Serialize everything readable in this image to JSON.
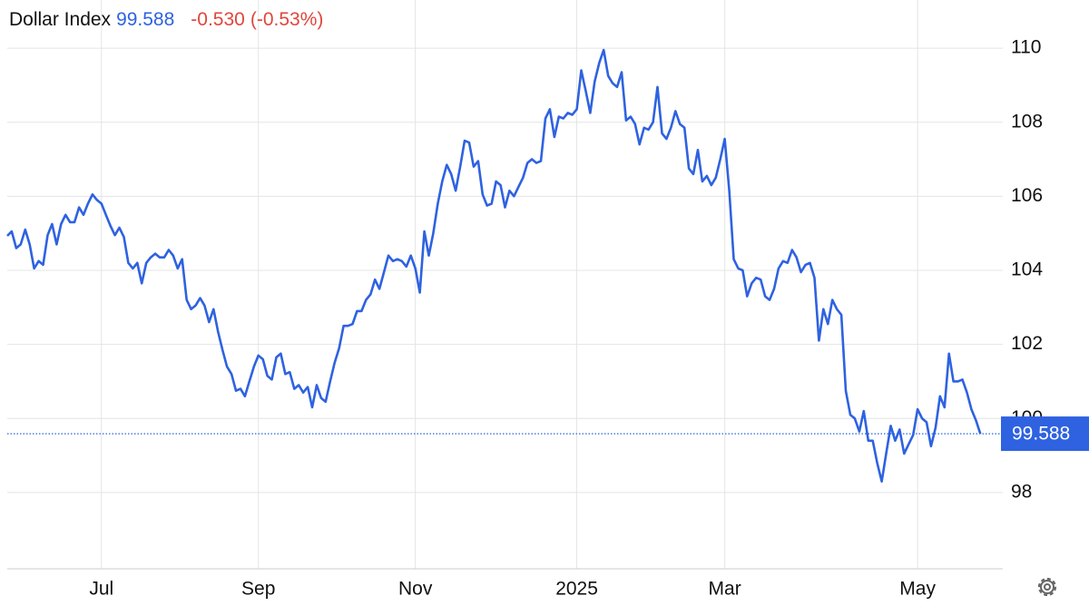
{
  "chart_data": {
    "type": "line",
    "title": "Dollar Index",
    "last": 99.588,
    "change": "-0.530",
    "change_percent": "(-0.53%)",
    "color": "#2e62e0",
    "change_color": "#e0463c",
    "values": [
      104.93,
      105.05,
      104.6,
      104.7,
      105.1,
      104.7,
      104.05,
      104.25,
      104.15,
      104.95,
      105.25,
      104.7,
      105.25,
      105.5,
      105.3,
      105.3,
      105.7,
      105.5,
      105.8,
      106.05,
      105.9,
      105.8,
      105.5,
      105.2,
      104.95,
      105.15,
      104.9,
      104.2,
      104.05,
      104.2,
      103.65,
      104.2,
      104.35,
      104.45,
      104.35,
      104.35,
      104.55,
      104.4,
      104.05,
      104.3,
      103.2,
      102.95,
      103.05,
      103.25,
      103.05,
      102.6,
      102.95,
      102.35,
      101.85,
      101.4,
      101.2,
      100.75,
      100.8,
      100.6,
      101.0,
      101.4,
      101.7,
      101.6,
      101.15,
      101.05,
      101.65,
      101.75,
      101.2,
      101.25,
      100.8,
      100.9,
      100.7,
      100.85,
      100.3,
      100.9,
      100.55,
      100.45,
      101.0,
      101.5,
      101.9,
      102.5,
      102.5,
      102.55,
      102.9,
      102.9,
      103.2,
      103.35,
      103.75,
      103.5,
      103.95,
      104.4,
      104.25,
      104.3,
      104.25,
      104.1,
      104.4,
      104.05,
      103.4,
      105.05,
      104.4,
      105.0,
      105.8,
      106.4,
      106.85,
      106.6,
      106.15,
      106.8,
      107.5,
      107.45,
      106.8,
      106.95,
      106.05,
      105.75,
      105.8,
      106.4,
      106.3,
      105.7,
      106.15,
      106.0,
      106.25,
      106.5,
      106.9,
      107.0,
      106.9,
      106.95,
      108.1,
      108.35,
      107.6,
      108.15,
      108.1,
      108.25,
      108.2,
      108.35,
      109.4,
      108.85,
      108.25,
      109.1,
      109.6,
      109.95,
      109.25,
      109.05,
      108.95,
      109.35,
      108.05,
      108.15,
      107.95,
      107.4,
      107.85,
      107.8,
      108.0,
      108.95,
      107.7,
      107.55,
      107.85,
      108.3,
      107.95,
      107.85,
      106.75,
      106.6,
      107.25,
      106.4,
      106.55,
      106.3,
      106.5,
      107.0,
      107.55,
      106.15,
      104.3,
      104.05,
      104.0,
      103.3,
      103.65,
      103.8,
      103.75,
      103.3,
      103.2,
      103.5,
      104.05,
      104.25,
      104.2,
      104.55,
      104.35,
      103.95,
      104.15,
      104.2,
      103.8,
      102.1,
      102.95,
      102.55,
      103.2,
      102.95,
      102.8,
      100.75,
      100.1,
      100.0,
      99.65,
      100.2,
      99.4,
      99.4,
      98.8,
      98.3,
      99.05,
      99.8,
      99.4,
      99.7,
      99.05,
      99.3,
      99.55,
      100.25,
      100.0,
      99.9,
      99.25,
      99.75,
      100.6,
      100.3,
      101.75,
      101.0,
      101.0,
      101.05,
      100.7,
      100.25,
      99.95,
      99.588
    ],
    "xlim": [
      0,
      222
    ],
    "xticks": [
      {
        "value": 21,
        "label": "Jul"
      },
      {
        "value": 56,
        "label": "Sep"
      },
      {
        "value": 91,
        "label": "Nov"
      },
      {
        "value": 127,
        "label": "2025"
      },
      {
        "value": 160,
        "label": "Mar"
      },
      {
        "value": 203,
        "label": "May"
      }
    ],
    "ylim": [
      95.94,
      111.3
    ],
    "yticks": [
      98,
      100,
      102,
      104,
      106,
      108,
      110
    ],
    "grid": true
  }
}
